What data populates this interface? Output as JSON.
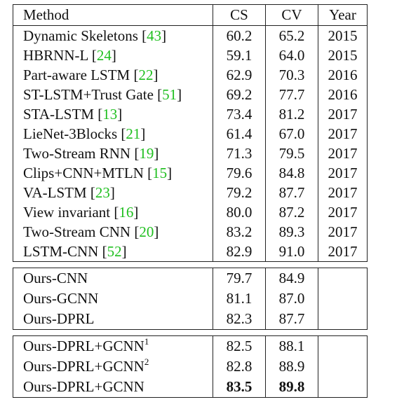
{
  "header": {
    "method": "Method",
    "cs": "CS",
    "cv": "CV",
    "year": "Year"
  },
  "baselines": [
    {
      "name": "Dynamic Skeletons",
      "cite": "43",
      "cs": "60.2",
      "cv": "65.2",
      "year": "2015"
    },
    {
      "name": "HBRNN-L",
      "cite": "24",
      "cs": "59.1",
      "cv": "64.0",
      "year": "2015"
    },
    {
      "name": "Part-aware LSTM",
      "cite": "22",
      "cs": "62.9",
      "cv": "70.3",
      "year": "2016"
    },
    {
      "name": "ST-LSTM+Trust Gate",
      "cite": "51",
      "cs": "69.2",
      "cv": "77.7",
      "year": "2016"
    },
    {
      "name": "STA-LSTM",
      "cite": "13",
      "cs": "73.4",
      "cv": "81.2",
      "year": "2017"
    },
    {
      "name": "LieNet-3Blocks",
      "cite": "21",
      "cs": "61.4",
      "cv": "67.0",
      "year": "2017"
    },
    {
      "name": "Two-Stream RNN",
      "cite": "19",
      "cs": "71.3",
      "cv": "79.5",
      "year": "2017"
    },
    {
      "name": "Clips+CNN+MTLN",
      "cite": "15",
      "cs": "79.6",
      "cv": "84.8",
      "year": "2017"
    },
    {
      "name": "VA-LSTM",
      "cite": "23",
      "cs": "79.2",
      "cv": "87.7",
      "year": "2017"
    },
    {
      "name": "View invariant",
      "cite": "16",
      "cs": "80.0",
      "cv": "87.2",
      "year": "2017"
    },
    {
      "name": "Two-Stream CNN",
      "cite": "20",
      "cs": "83.2",
      "cv": "89.3",
      "year": "2017"
    },
    {
      "name": "LSTM-CNN",
      "cite": "52",
      "cs": "82.9",
      "cv": "91.0",
      "year": "2017"
    }
  ],
  "ours_a": [
    {
      "name": "Ours-CNN",
      "cs": "79.7",
      "cv": "84.9"
    },
    {
      "name": "Ours-GCNN",
      "cs": "81.1",
      "cv": "87.0"
    },
    {
      "name": "Ours-DPRL",
      "cs": "82.3",
      "cv": "87.7"
    }
  ],
  "ours_b": [
    {
      "name": "Ours-DPRL+GCNN",
      "sup": "1",
      "cs": "82.5",
      "cv": "88.1"
    },
    {
      "name": "Ours-DPRL+GCNN",
      "sup": "2",
      "cs": "82.8",
      "cv": "88.9"
    },
    {
      "name": "Ours-DPRL+GCNN",
      "sup": "",
      "cs": "83.5",
      "cv": "89.8",
      "bold": true
    }
  ]
}
